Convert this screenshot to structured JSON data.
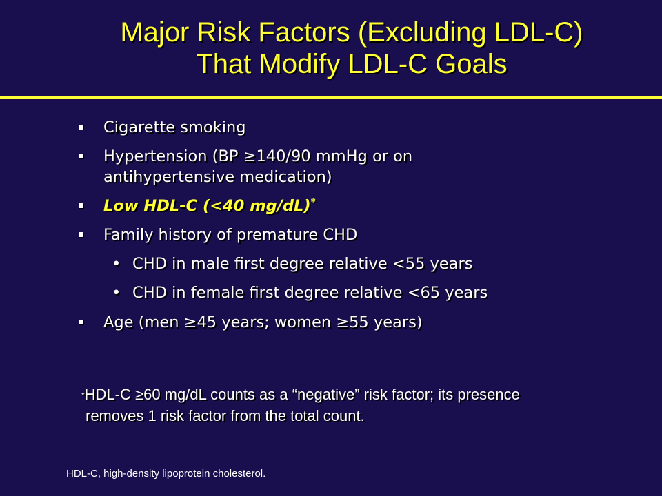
{
  "slide": {
    "title_line1": "Major Risk Factors (Excluding LDL-C)",
    "title_line2": "That Modify LDL-C Goals",
    "bullets": [
      {
        "text": "Cigarette smoking"
      },
      {
        "text": "Hypertension (BP ≥140/90 mmHg or on antihypertensive medication)"
      },
      {
        "text": "Low HDL-C (<40 mg/dL)",
        "marker": "*"
      },
      {
        "text": "Family history of premature CHD"
      },
      {
        "text": "Age (men ≥45 years; women ≥55 years)"
      }
    ],
    "sub_bullets": [
      {
        "text": "CHD in male first degree relative <55 years"
      },
      {
        "text": "CHD in female first degree relative <65 years"
      }
    ],
    "footnote_marker": "*",
    "footnote_line1": "HDL-C ≥60 mg/dL counts as a “negative” risk factor; its presence",
    "footnote_line2": "removes 1 risk factor from the total count.",
    "abbreviation": "HDL-C, high-density lipoprotein cholesterol."
  },
  "colors": {
    "background": "#1a0f4e",
    "title": "#ffff33",
    "highlight": "#ffff33",
    "text": "#ffffff"
  }
}
